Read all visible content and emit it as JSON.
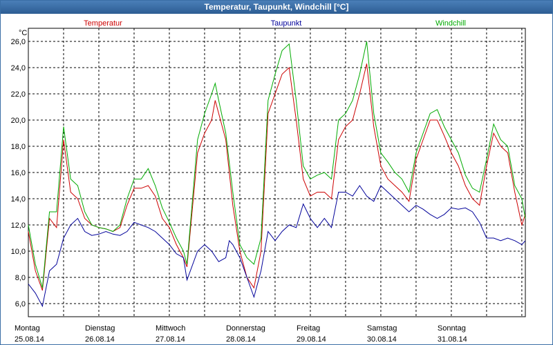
{
  "window": {
    "title": "Temperatur, Taupunkt, Windchill [°C]"
  },
  "colors": {
    "temperatur": "#cc0000",
    "taupunkt": "#000099",
    "windchill": "#00aa00",
    "grid": "#000000",
    "axis": "#000000"
  },
  "chart_data": {
    "type": "line",
    "title": "Temperatur, Taupunkt, Windchill [°C]",
    "ylabel": "°C",
    "ylim": [
      5.0,
      27.0
    ],
    "yticks": [
      "6,0",
      "8,0",
      "10,0",
      "12,0",
      "14,0",
      "16,0",
      "18,0",
      "20,0",
      "22,0",
      "24,0",
      "26,0"
    ],
    "xlim": [
      0,
      7.05
    ],
    "x_days": [
      {
        "day": "Montag",
        "date": "25.08.14"
      },
      {
        "day": "Dienstag",
        "date": "26.08.14"
      },
      {
        "day": "Mittwoch",
        "date": "27.08.14"
      },
      {
        "day": "Donnerstag",
        "date": "28.08.14"
      },
      {
        "day": "Freitag",
        "date": "29.08.14"
      },
      {
        "day": "Samstag",
        "date": "30.08.14"
      },
      {
        "day": "Sonntag",
        "date": "31.08.14"
      }
    ],
    "series": [
      {
        "name": "Temperatur",
        "color": "#cc0000",
        "points": [
          [
            0,
            11.5
          ],
          [
            0.1,
            8.5
          ],
          [
            0.2,
            7.0
          ],
          [
            0.3,
            12.5
          ],
          [
            0.4,
            11.8
          ],
          [
            0.5,
            18.5
          ],
          [
            0.6,
            14.5
          ],
          [
            0.7,
            14.0
          ],
          [
            0.8,
            12.5
          ],
          [
            0.9,
            12.0
          ],
          [
            1.0,
            11.8
          ],
          [
            1.1,
            11.7
          ],
          [
            1.2,
            11.5
          ],
          [
            1.3,
            11.8
          ],
          [
            1.4,
            13.5
          ],
          [
            1.5,
            14.8
          ],
          [
            1.6,
            14.8
          ],
          [
            1.7,
            15.0
          ],
          [
            1.8,
            14.2
          ],
          [
            1.9,
            12.5
          ],
          [
            2.0,
            11.8
          ],
          [
            2.1,
            10.5
          ],
          [
            2.2,
            9.5
          ],
          [
            2.25,
            8.8
          ],
          [
            2.4,
            17.5
          ],
          [
            2.5,
            19.0
          ],
          [
            2.6,
            20.0
          ],
          [
            2.65,
            21.5
          ],
          [
            2.7,
            20.5
          ],
          [
            2.8,
            18.5
          ],
          [
            2.9,
            13.5
          ],
          [
            3.0,
            10.0
          ],
          [
            3.1,
            8.0
          ],
          [
            3.2,
            7.2
          ],
          [
            3.3,
            10.0
          ],
          [
            3.4,
            20.5
          ],
          [
            3.5,
            22.0
          ],
          [
            3.6,
            23.5
          ],
          [
            3.7,
            24.0
          ],
          [
            3.8,
            20.0
          ],
          [
            3.9,
            15.5
          ],
          [
            4.0,
            14.2
          ],
          [
            4.1,
            14.5
          ],
          [
            4.2,
            14.5
          ],
          [
            4.3,
            14.0
          ],
          [
            4.4,
            18.5
          ],
          [
            4.5,
            19.5
          ],
          [
            4.6,
            20.0
          ],
          [
            4.7,
            22.0
          ],
          [
            4.8,
            24.3
          ],
          [
            4.9,
            19.5
          ],
          [
            5.0,
            16.5
          ],
          [
            5.1,
            15.5
          ],
          [
            5.2,
            15.0
          ],
          [
            5.3,
            14.5
          ],
          [
            5.4,
            13.8
          ],
          [
            5.5,
            17.0
          ],
          [
            5.6,
            18.5
          ],
          [
            5.7,
            20.0
          ],
          [
            5.8,
            20.0
          ],
          [
            5.9,
            18.8
          ],
          [
            6.0,
            17.5
          ],
          [
            6.1,
            16.5
          ],
          [
            6.2,
            15.0
          ],
          [
            6.3,
            14.0
          ],
          [
            6.4,
            13.5
          ],
          [
            6.5,
            16.5
          ],
          [
            6.6,
            19.0
          ],
          [
            6.7,
            18.0
          ],
          [
            6.8,
            17.5
          ],
          [
            6.9,
            14.5
          ],
          [
            7.0,
            12.0
          ],
          [
            7.05,
            12.8
          ]
        ]
      },
      {
        "name": "Taupunkt",
        "color": "#000099",
        "points": [
          [
            0,
            7.5
          ],
          [
            0.1,
            6.8
          ],
          [
            0.2,
            5.8
          ],
          [
            0.3,
            8.5
          ],
          [
            0.4,
            9.0
          ],
          [
            0.5,
            11.0
          ],
          [
            0.6,
            12.0
          ],
          [
            0.7,
            12.5
          ],
          [
            0.8,
            11.5
          ],
          [
            0.9,
            11.2
          ],
          [
            1.0,
            11.3
          ],
          [
            1.1,
            11.5
          ],
          [
            1.2,
            11.3
          ],
          [
            1.3,
            11.2
          ],
          [
            1.4,
            11.5
          ],
          [
            1.5,
            12.2
          ],
          [
            1.6,
            12.0
          ],
          [
            1.7,
            11.8
          ],
          [
            1.8,
            11.5
          ],
          [
            1.9,
            11.0
          ],
          [
            2.0,
            10.5
          ],
          [
            2.1,
            9.8
          ],
          [
            2.2,
            9.5
          ],
          [
            2.25,
            7.8
          ],
          [
            2.4,
            10.0
          ],
          [
            2.5,
            10.5
          ],
          [
            2.6,
            10.0
          ],
          [
            2.7,
            9.2
          ],
          [
            2.8,
            9.5
          ],
          [
            2.85,
            10.8
          ],
          [
            2.9,
            10.5
          ],
          [
            3.0,
            9.5
          ],
          [
            3.1,
            8.0
          ],
          [
            3.2,
            6.5
          ],
          [
            3.3,
            8.5
          ],
          [
            3.4,
            11.5
          ],
          [
            3.5,
            10.8
          ],
          [
            3.6,
            11.5
          ],
          [
            3.7,
            12.0
          ],
          [
            3.8,
            11.8
          ],
          [
            3.9,
            13.6
          ],
          [
            4.0,
            12.5
          ],
          [
            4.1,
            11.8
          ],
          [
            4.2,
            12.5
          ],
          [
            4.3,
            11.8
          ],
          [
            4.4,
            14.5
          ],
          [
            4.5,
            14.5
          ],
          [
            4.6,
            14.2
          ],
          [
            4.7,
            15.0
          ],
          [
            4.8,
            14.2
          ],
          [
            4.9,
            13.8
          ],
          [
            5.0,
            15.0
          ],
          [
            5.1,
            14.5
          ],
          [
            5.2,
            14.0
          ],
          [
            5.3,
            13.5
          ],
          [
            5.4,
            13.0
          ],
          [
            5.5,
            13.5
          ],
          [
            5.6,
            13.2
          ],
          [
            5.7,
            12.8
          ],
          [
            5.8,
            12.5
          ],
          [
            5.9,
            12.8
          ],
          [
            6.0,
            13.3
          ],
          [
            6.1,
            13.2
          ],
          [
            6.2,
            13.3
          ],
          [
            6.3,
            13.0
          ],
          [
            6.4,
            12.2
          ],
          [
            6.5,
            11.0
          ],
          [
            6.6,
            11.0
          ],
          [
            6.7,
            10.8
          ],
          [
            6.8,
            11.0
          ],
          [
            6.9,
            10.8
          ],
          [
            7.0,
            10.5
          ],
          [
            7.05,
            10.8
          ]
        ]
      },
      {
        "name": "Windchill",
        "color": "#00aa00",
        "points": [
          [
            0,
            12.0
          ],
          [
            0.1,
            9.0
          ],
          [
            0.2,
            7.2
          ],
          [
            0.3,
            13.0
          ],
          [
            0.4,
            13.0
          ],
          [
            0.5,
            19.5
          ],
          [
            0.6,
            15.5
          ],
          [
            0.7,
            15.0
          ],
          [
            0.8,
            13.0
          ],
          [
            0.9,
            12.0
          ],
          [
            1.0,
            11.8
          ],
          [
            1.1,
            11.7
          ],
          [
            1.2,
            11.5
          ],
          [
            1.3,
            12.0
          ],
          [
            1.4,
            14.0
          ],
          [
            1.5,
            15.5
          ],
          [
            1.6,
            15.5
          ],
          [
            1.7,
            16.3
          ],
          [
            1.8,
            15.0
          ],
          [
            1.9,
            13.3
          ],
          [
            2.0,
            12.2
          ],
          [
            2.1,
            11.0
          ],
          [
            2.2,
            10.0
          ],
          [
            2.25,
            9.0
          ],
          [
            2.4,
            18.5
          ],
          [
            2.5,
            20.5
          ],
          [
            2.6,
            22.0
          ],
          [
            2.65,
            22.8
          ],
          [
            2.7,
            21.5
          ],
          [
            2.8,
            19.0
          ],
          [
            2.9,
            14.5
          ],
          [
            3.0,
            10.5
          ],
          [
            3.1,
            9.5
          ],
          [
            3.2,
            9.0
          ],
          [
            3.3,
            11.0
          ],
          [
            3.4,
            21.5
          ],
          [
            3.5,
            23.5
          ],
          [
            3.6,
            25.3
          ],
          [
            3.7,
            25.8
          ],
          [
            3.8,
            21.5
          ],
          [
            3.9,
            16.5
          ],
          [
            4.0,
            15.5
          ],
          [
            4.1,
            15.8
          ],
          [
            4.2,
            16.0
          ],
          [
            4.3,
            15.5
          ],
          [
            4.4,
            20.0
          ],
          [
            4.5,
            20.5
          ],
          [
            4.6,
            21.5
          ],
          [
            4.7,
            23.5
          ],
          [
            4.8,
            26.0
          ],
          [
            4.9,
            20.5
          ],
          [
            5.0,
            17.5
          ],
          [
            5.1,
            16.8
          ],
          [
            5.2,
            16.0
          ],
          [
            5.3,
            15.5
          ],
          [
            5.4,
            14.5
          ],
          [
            5.5,
            17.5
          ],
          [
            5.6,
            19.0
          ],
          [
            5.7,
            20.5
          ],
          [
            5.8,
            20.8
          ],
          [
            5.9,
            19.5
          ],
          [
            6.0,
            18.5
          ],
          [
            6.1,
            17.5
          ],
          [
            6.2,
            15.8
          ],
          [
            6.3,
            14.8
          ],
          [
            6.4,
            14.5
          ],
          [
            6.5,
            17.0
          ],
          [
            6.6,
            19.7
          ],
          [
            6.7,
            18.5
          ],
          [
            6.8,
            18.0
          ],
          [
            6.9,
            15.0
          ],
          [
            7.0,
            14.0
          ],
          [
            7.05,
            12.5
          ]
        ]
      }
    ]
  }
}
